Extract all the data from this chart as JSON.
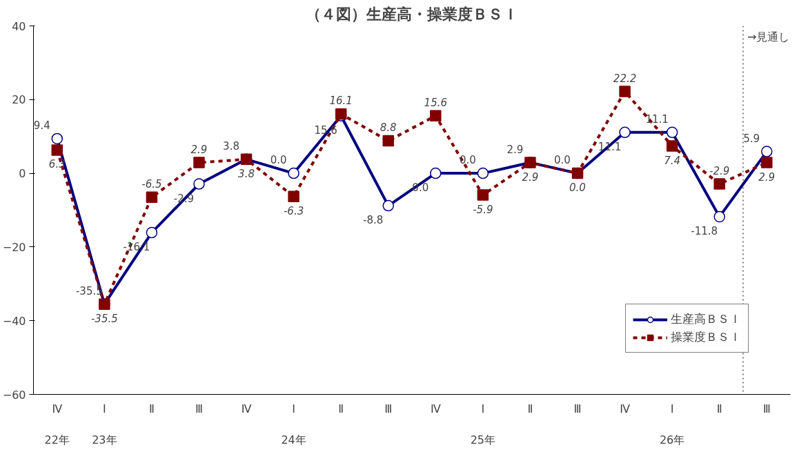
{
  "chart_data": {
    "type": "line",
    "title": "（４図）生産高・操業度ＢＳＩ",
    "categories": [
      "Ⅳ\n\n22年",
      "Ⅰ\n\n23年",
      "Ⅱ",
      "Ⅲ",
      "Ⅳ",
      "Ⅰ\n\n24年",
      "Ⅱ",
      "Ⅲ",
      "Ⅳ",
      "Ⅰ\n\n25年",
      "Ⅱ",
      "Ⅲ",
      "Ⅳ",
      "Ⅰ\n\n26年",
      "Ⅱ",
      "Ⅲ"
    ],
    "series": [
      {
        "name": "生産高ＢＳＩ",
        "color": "#000080",
        "marker": "circle",
        "line_style": "solid",
        "values": [
          9.4,
          -35.5,
          -16.1,
          -2.9,
          3.8,
          0.0,
          15.6,
          -8.8,
          0.0,
          0.0,
          2.9,
          0.0,
          11.1,
          11.1,
          -11.8,
          5.9
        ],
        "value_labels": [
          "9.4",
          "-35.5",
          "-16.1",
          "-2.9",
          "3.8",
          "0.0",
          "15.6",
          "-8.8",
          "0.0",
          "0.0",
          "2.9",
          "0.0",
          "11.1",
          "11.1",
          "-11.8",
          "5.9"
        ]
      },
      {
        "name": "操業度ＢＳＩ",
        "color": "#800000",
        "marker": "square",
        "line_style": "dashed",
        "values": [
          6.3,
          -35.5,
          -6.5,
          2.9,
          3.8,
          -6.3,
          16.1,
          8.8,
          15.6,
          -5.9,
          2.9,
          0.0,
          22.2,
          7.4,
          -2.9,
          2.9
        ],
        "value_labels": [
          "6.3",
          "-35.5",
          "-6.5",
          "2.9",
          "3.8",
          "-6.3",
          "16.1",
          "8.8",
          "15.6",
          "-5.9",
          "2.9",
          "0.0",
          "22.2",
          "7.4",
          "-2.9",
          "2.9"
        ]
      }
    ],
    "ylim": [
      -60,
      40
    ],
    "yticks": [
      -60,
      -40,
      -20,
      0,
      20,
      40
    ],
    "grid": false,
    "legend": "bottom right",
    "annotations": [
      "→見通し"
    ]
  }
}
